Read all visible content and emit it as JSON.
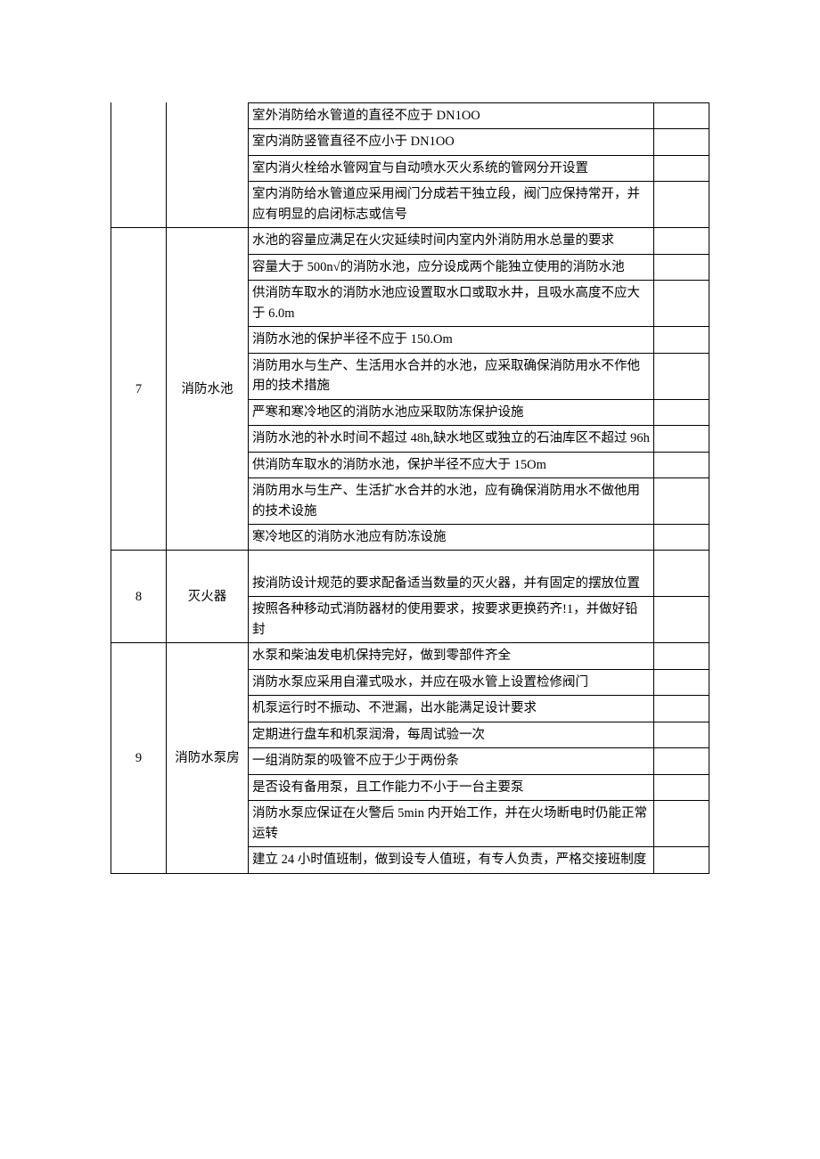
{
  "groups": [
    {
      "num": "",
      "cat": "",
      "continuation": true,
      "rows": [
        "室外消防给水管道的直径不应于 DN1OO",
        "室内消防竖管直径不应小于 DN1OO",
        "室内消火栓给水管网宜与自动喷水灭火系统的管网分开设置\n",
        "室内消防给水管道应采用阀门分成若干独立段，阀门应保持常开，并应有明显的启闭标志或信号"
      ]
    },
    {
      "num": "7",
      "cat": "消防水池",
      "continuation": false,
      "rows": [
        "水池的容量应满足在火灾延续时间内室内外消防用水总量的要求\n",
        "容量大于 500n√的消防水池，应分设成两个能独立使用的消防水池",
        "供消防车取水的消防水池应设置取水口或取水井，且吸水高度不应大于 6.0m",
        "消防水池的保护半径不应于 150.Om",
        "消防用水与生产、生活用水合并的水池，应采取确保消防用水不作他用的技术措施",
        "严寒和寒冷地区的消防水池应采取防冻保护设施",
        "消防水池的补水时间不超过 48h,缺水地区或独立的石油库区不超过 96h",
        "供消防车取水的消防水池，保护半径不应大于 15Om\n",
        "消防用水与生产、生活扩水合并的水池，应有确保消防用水不做他用的技术设施",
        "寒冷地区的消防水池应有防冻设施"
      ]
    },
    {
      "num": "8",
      "cat": "灭火器",
      "continuation": false,
      "rows": [
        "\n按消防设计规范的要求配备适当数量的灭火器，并有固定的摆放位置",
        "按照各种移动式消防器材的使用要求，按要求更换药齐!1，并做好铅封"
      ]
    },
    {
      "num": "9",
      "cat": "消防水泵房",
      "continuation": false,
      "rows": [
        "水泵和柴油发电机保持完好，做到零部件齐全\n",
        "消防水泵应采用自灌式吸水，并应在吸水管上设置检修阀门\n",
        "机泵运行时不振动、不泄漏，出水能满足设计要求\n",
        "定期进行盘车和机泵润滑，每周试验一次",
        "一组消防泵的吸管不应于少于两份条",
        "是否设有备用泵，且工作能力不小于一台主要泵",
        "消防水泵应保证在火警后 5min 内开始工作，并在火场断电时仍能正常运转",
        "建立 24 小时值班制，做到设专人值班，有专人负责，严格交接班制度"
      ]
    }
  ]
}
